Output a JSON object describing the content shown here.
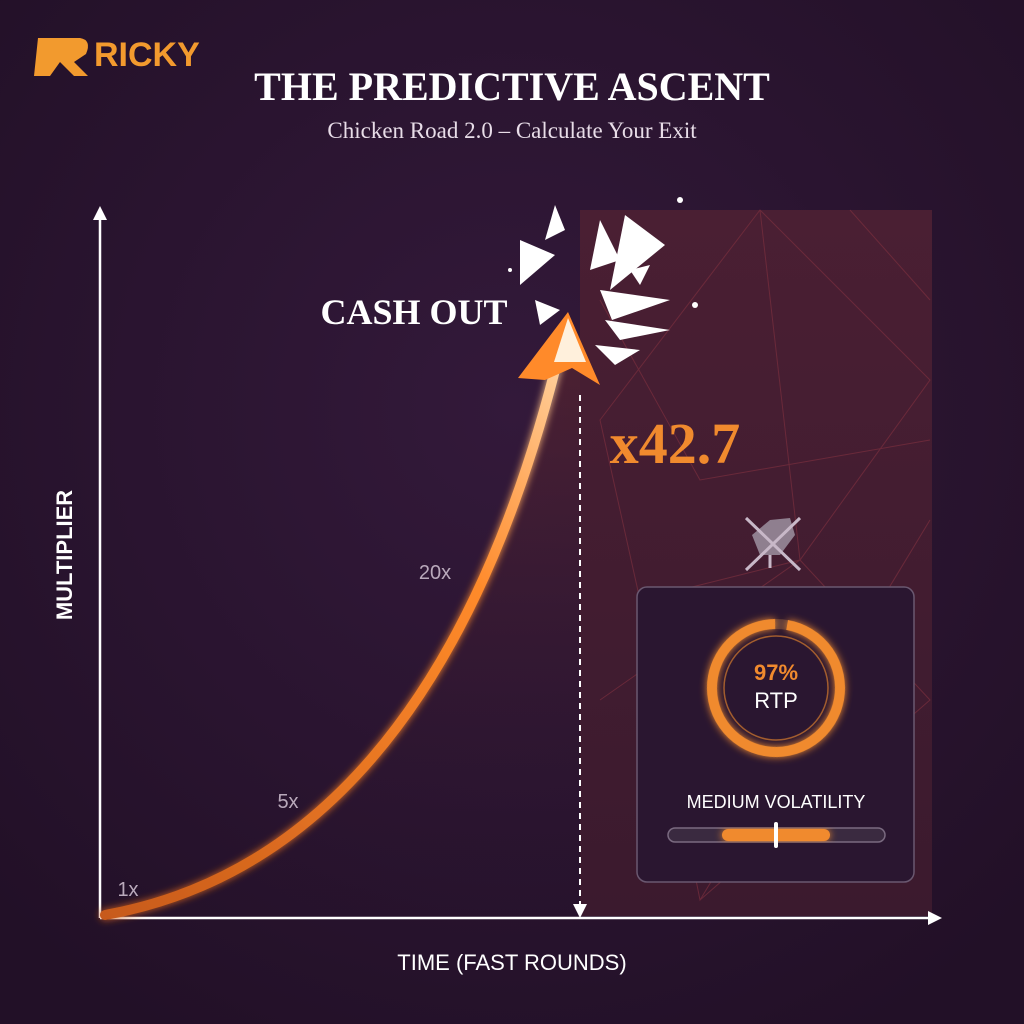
{
  "brand": "RICKY",
  "header": {
    "title": "THE PREDICTIVE ASCENT",
    "subtitle": "Chicken Road 2.0 – Calculate Your Exit"
  },
  "axes": {
    "y_label": "MULTIPLIER",
    "x_label": "TIME (FAST ROUNDS)"
  },
  "curve_labels": [
    "1x",
    "5x",
    "20x"
  ],
  "cash_out": {
    "label": "CASH OUT",
    "multiplier": "x42.7"
  },
  "panel": {
    "rtp_value": "97%",
    "rtp_label": "RTP",
    "volatility": "MEDIUM VOLATILITY"
  }
}
